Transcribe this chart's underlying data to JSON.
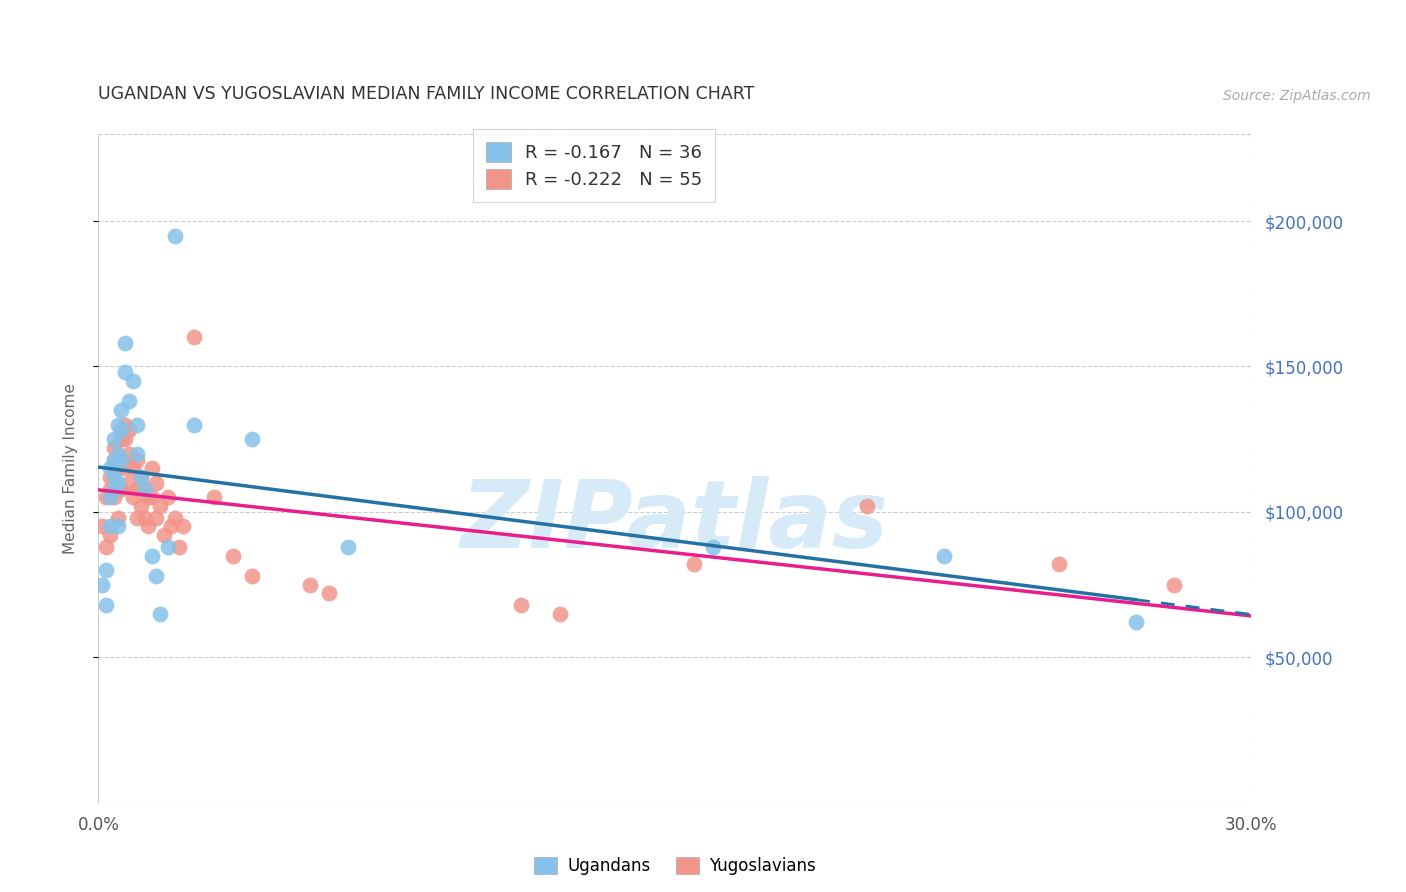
{
  "title": "UGANDAN VS YUGOSLAVIAN MEDIAN FAMILY INCOME CORRELATION CHART",
  "source": "Source: ZipAtlas.com",
  "ylabel": "Median Family Income",
  "xlim": [
    0.0,
    0.3
  ],
  "ylim": [
    0,
    230000
  ],
  "plot_ylim": [
    40000,
    220000
  ],
  "xtick_vals": [
    0.0,
    0.3
  ],
  "xtick_labels": [
    "0.0%",
    "30.0%"
  ],
  "ytick_vals": [
    50000,
    100000,
    150000,
    200000
  ],
  "ytick_labels": [
    "$50,000",
    "$100,000",
    "$150,000",
    "$200,000"
  ],
  "legend_labels": [
    "Ugandans",
    "Yugoslavians"
  ],
  "ugandan_color": "#85C1E9",
  "yugoslavian_color": "#F1948A",
  "ugandan_line_color": "#2471A3",
  "yugoslavian_line_color": "#E91E8C",
  "watermark": "ZIPatlas",
  "watermark_color": "#D6EAF8",
  "background_color": "#FFFFFF",
  "ugandan_x": [
    0.001,
    0.002,
    0.002,
    0.003,
    0.003,
    0.003,
    0.004,
    0.004,
    0.004,
    0.004,
    0.005,
    0.005,
    0.005,
    0.005,
    0.006,
    0.006,
    0.006,
    0.007,
    0.007,
    0.008,
    0.009,
    0.01,
    0.01,
    0.011,
    0.012,
    0.014,
    0.015,
    0.016,
    0.018,
    0.02,
    0.025,
    0.04,
    0.065,
    0.16,
    0.22,
    0.27
  ],
  "ugandan_y": [
    75000,
    80000,
    68000,
    95000,
    105000,
    115000,
    112000,
    118000,
    125000,
    108000,
    130000,
    120000,
    110000,
    95000,
    135000,
    128000,
    118000,
    158000,
    148000,
    138000,
    145000,
    130000,
    120000,
    112000,
    108000,
    85000,
    78000,
    65000,
    88000,
    195000,
    130000,
    125000,
    88000,
    88000,
    85000,
    62000
  ],
  "yugoslavian_x": [
    0.001,
    0.002,
    0.002,
    0.003,
    0.003,
    0.003,
    0.004,
    0.004,
    0.004,
    0.005,
    0.005,
    0.005,
    0.006,
    0.006,
    0.006,
    0.007,
    0.007,
    0.007,
    0.008,
    0.008,
    0.008,
    0.009,
    0.009,
    0.01,
    0.01,
    0.01,
    0.011,
    0.011,
    0.012,
    0.012,
    0.013,
    0.013,
    0.014,
    0.014,
    0.015,
    0.015,
    0.016,
    0.017,
    0.018,
    0.019,
    0.02,
    0.021,
    0.022,
    0.025,
    0.03,
    0.035,
    0.04,
    0.055,
    0.06,
    0.11,
    0.12,
    0.155,
    0.2,
    0.25,
    0.28
  ],
  "yugoslavian_y": [
    95000,
    88000,
    105000,
    92000,
    112000,
    108000,
    118000,
    122000,
    105000,
    98000,
    115000,
    108000,
    125000,
    118000,
    108000,
    130000,
    125000,
    115000,
    128000,
    120000,
    110000,
    115000,
    105000,
    118000,
    108000,
    98000,
    112000,
    102000,
    108000,
    98000,
    105000,
    95000,
    115000,
    105000,
    110000,
    98000,
    102000,
    92000,
    105000,
    95000,
    98000,
    88000,
    95000,
    160000,
    105000,
    85000,
    78000,
    75000,
    72000,
    68000,
    65000,
    82000,
    102000,
    82000,
    75000
  ],
  "ugandan_R": -0.167,
  "yugoslavian_R": -0.222,
  "ugandan_N": 36,
  "yugoslavian_N": 55,
  "ug_line_x_solid_end": 0.27,
  "yu_line_x_end": 0.3
}
